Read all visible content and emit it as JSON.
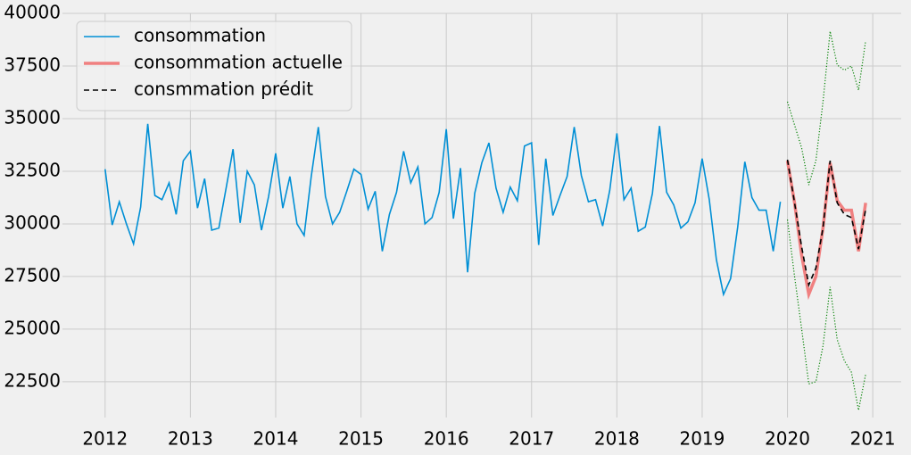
{
  "chart_data": {
    "type": "line",
    "xlim": [
      "2011-07",
      "2021-05"
    ],
    "xticks": [
      "2012",
      "2013",
      "2014",
      "2015",
      "2016",
      "2017",
      "2018",
      "2019",
      "2020",
      "2021"
    ],
    "ylim": [
      20800,
      40000
    ],
    "yticks": [
      22500,
      25000,
      27500,
      30000,
      32500,
      35000,
      37500,
      40000
    ],
    "grid": true,
    "legend": "upper-left",
    "legend_text_color": "green",
    "series": [
      {
        "name": "consommation",
        "color": "#008fd5",
        "linestyle": "solid",
        "width": 1.6,
        "x": [
          "2012-01",
          "2012-02",
          "2012-03",
          "2012-04",
          "2012-05",
          "2012-06",
          "2012-07",
          "2012-08",
          "2012-09",
          "2012-10",
          "2012-11",
          "2012-12",
          "2013-01",
          "2013-02",
          "2013-03",
          "2013-04",
          "2013-05",
          "2013-06",
          "2013-07",
          "2013-08",
          "2013-09",
          "2013-10",
          "2013-11",
          "2013-12",
          "2014-01",
          "2014-02",
          "2014-03",
          "2014-04",
          "2014-05",
          "2014-06",
          "2014-07",
          "2014-08",
          "2014-09",
          "2014-10",
          "2014-11",
          "2014-12",
          "2015-01",
          "2015-02",
          "2015-03",
          "2015-04",
          "2015-05",
          "2015-06",
          "2015-07",
          "2015-08",
          "2015-09",
          "2015-10",
          "2015-11",
          "2015-12",
          "2016-01",
          "2016-02",
          "2016-03",
          "2016-04",
          "2016-05",
          "2016-06",
          "2016-07",
          "2016-08",
          "2016-09",
          "2016-10",
          "2016-11",
          "2016-12",
          "2017-01",
          "2017-02",
          "2017-03",
          "2017-04",
          "2017-05",
          "2017-06",
          "2017-07",
          "2017-08",
          "2017-09",
          "2017-10",
          "2017-11",
          "2017-12",
          "2018-01",
          "2018-02",
          "2018-03",
          "2018-04",
          "2018-05",
          "2018-06",
          "2018-07",
          "2018-08",
          "2018-09",
          "2018-10",
          "2018-11",
          "2018-12",
          "2019-01",
          "2019-02",
          "2019-03",
          "2019-04",
          "2019-05",
          "2019-06",
          "2019-07",
          "2019-08",
          "2019-09",
          "2019-10",
          "2019-11",
          "2019-12"
        ],
        "values": [
          32600,
          29950,
          31050,
          30000,
          29050,
          30800,
          34750,
          31350,
          31150,
          31950,
          30450,
          33000,
          33450,
          30750,
          32150,
          29700,
          29800,
          31650,
          33550,
          30050,
          32500,
          31850,
          29700,
          31300,
          33350,
          30750,
          32250,
          30000,
          29450,
          32250,
          34600,
          31300,
          30000,
          30550,
          31550,
          32600,
          32350,
          30700,
          31550,
          28700,
          30450,
          31500,
          33450,
          31950,
          32700,
          30000,
          30300,
          31500,
          34500,
          30250,
          32650,
          27700,
          31450,
          32900,
          33850,
          31700,
          30550,
          31750,
          31100,
          33700,
          33850,
          29000,
          33100,
          30400,
          31350,
          32250,
          34600,
          32300,
          31050,
          31150,
          29900,
          31600,
          34300,
          31150,
          31700,
          29650,
          29850,
          31450,
          34650,
          31500,
          30900,
          29800,
          30100,
          31000,
          33100,
          31150,
          28300,
          26650,
          27400,
          29850,
          32950,
          31250,
          30650,
          30650,
          28700,
          31050
        ]
      },
      {
        "name": "consommation actuelle",
        "color": "#f08080",
        "linestyle": "solid",
        "width": 3.5,
        "x": [
          "2020-01",
          "2020-02",
          "2020-03",
          "2020-04",
          "2020-05",
          "2020-06",
          "2020-07",
          "2020-08",
          "2020-09",
          "2020-10",
          "2020-11",
          "2020-12"
        ],
        "values": [
          33000,
          31000,
          28500,
          26650,
          27500,
          29800,
          32900,
          31100,
          30650,
          30650,
          28700,
          31000
        ]
      },
      {
        "name": "consmmation prédit",
        "color": "#000000",
        "linestyle": "dashed",
        "width": 1.6,
        "x": [
          "2020-01",
          "2020-02",
          "2020-03",
          "2020-04",
          "2020-05",
          "2020-06",
          "2020-07",
          "2020-08",
          "2020-09",
          "2020-10",
          "2020-11",
          "2020-12"
        ],
        "values": [
          33050,
          31000,
          28900,
          27100,
          27900,
          29800,
          33000,
          31000,
          30450,
          30300,
          28800,
          30700
        ]
      },
      {
        "color": "green",
        "linestyle": "dotted",
        "width": 1.2,
        "x": [
          "2020-01",
          "2020-02",
          "2020-03",
          "2020-04",
          "2020-05",
          "2020-06",
          "2020-07",
          "2020-08",
          "2020-09",
          "2020-10",
          "2020-11",
          "2020-12"
        ],
        "values": [
          35800,
          34700,
          33600,
          31850,
          33000,
          35800,
          39150,
          37550,
          37300,
          37500,
          36350,
          38700
        ]
      },
      {
        "color": "green",
        "linestyle": "dotted",
        "width": 1.2,
        "x": [
          "2020-01",
          "2020-02",
          "2020-03",
          "2020-04",
          "2020-05",
          "2020-06",
          "2020-07",
          "2020-08",
          "2020-09",
          "2020-10",
          "2020-11",
          "2020-12"
        ],
        "values": [
          30200,
          27500,
          25000,
          22400,
          22500,
          24200,
          27000,
          24500,
          23500,
          22950,
          21150,
          22850
        ]
      }
    ]
  }
}
